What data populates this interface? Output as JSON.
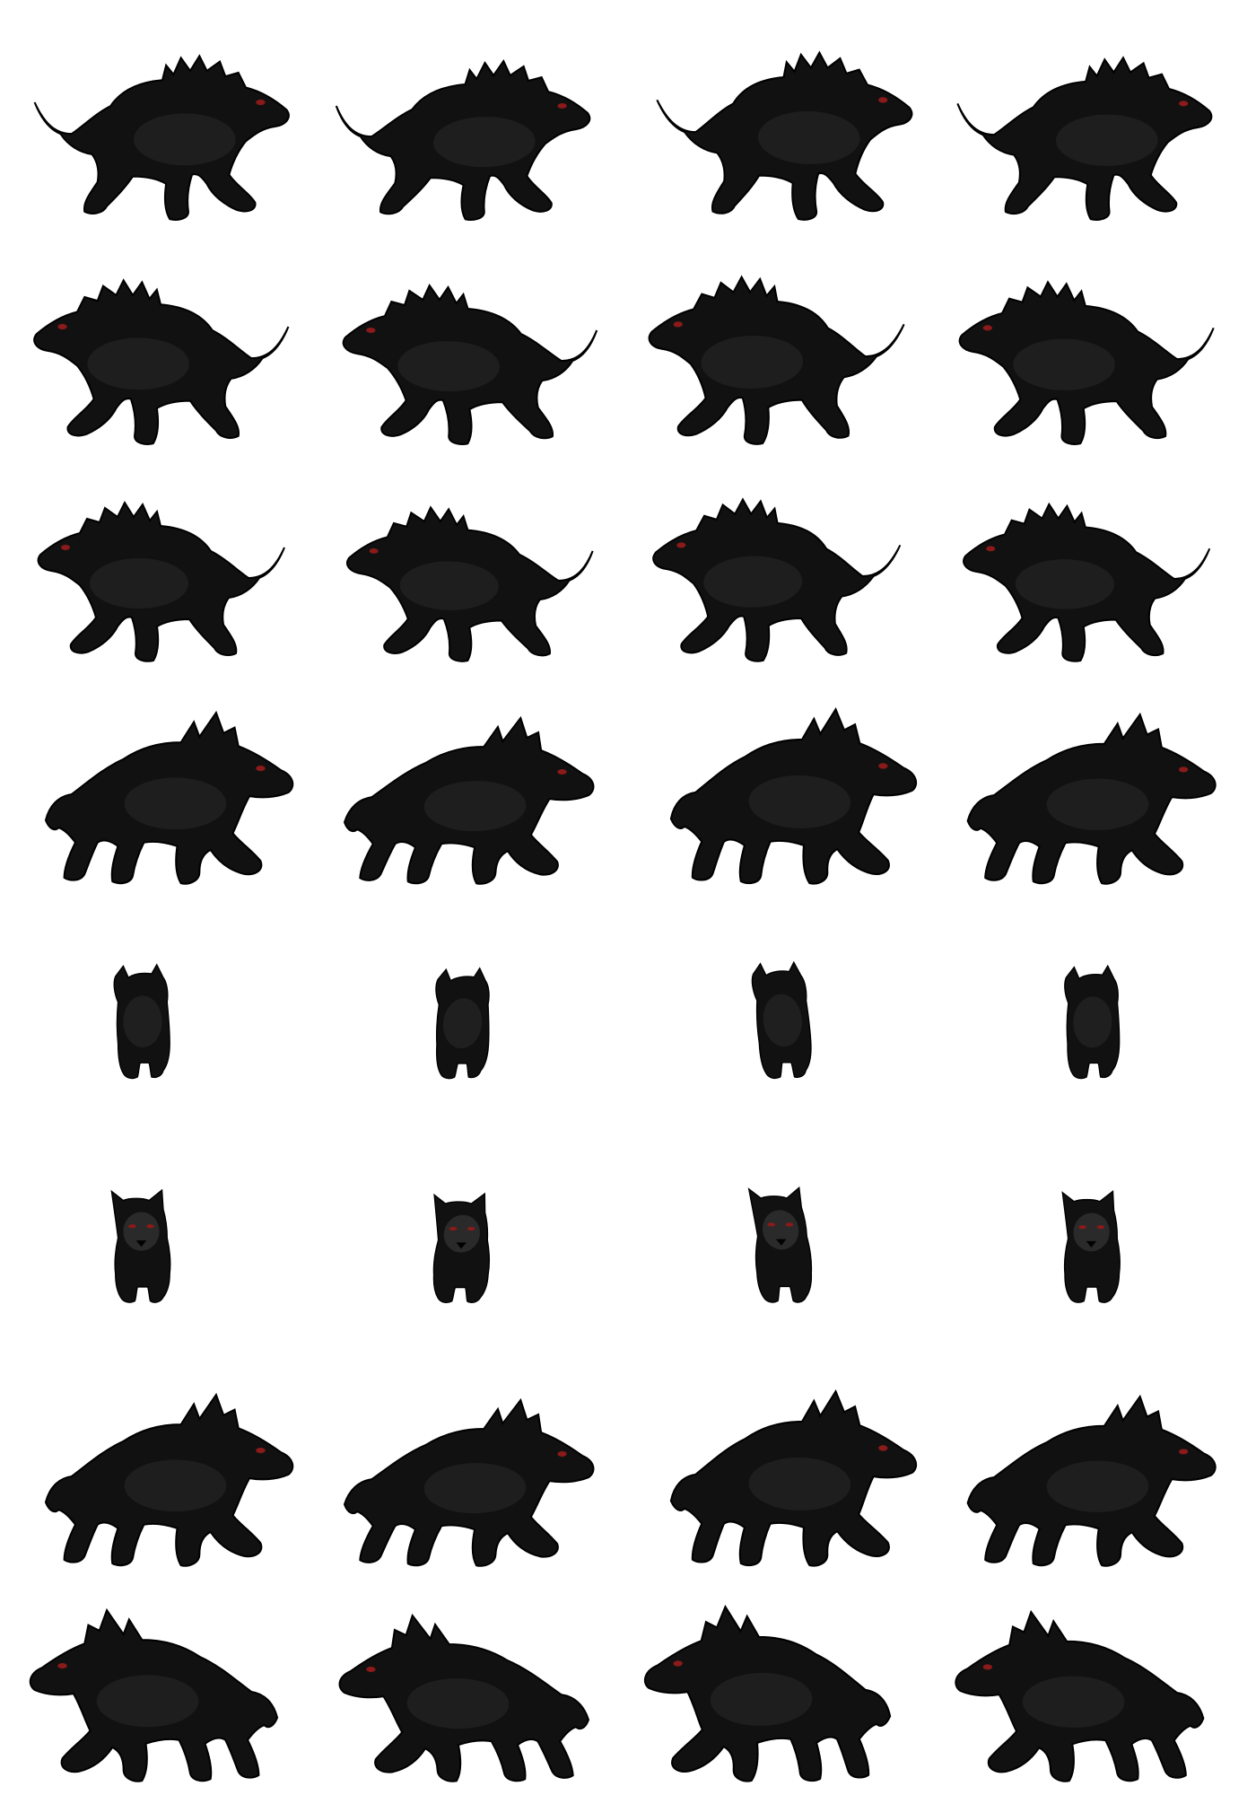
{
  "sheet": {
    "background": "#ffffff",
    "fill_color": "#111111",
    "shade_color": "#2a2a2a",
    "outline_color": "#000000",
    "eye_color": "#8b1a1a",
    "icon": "wolf-sprite-icon"
  },
  "rows": [
    {
      "name": "walk-right-a",
      "facing": "right",
      "view": "side",
      "frames": 4
    },
    {
      "name": "walk-left-a",
      "facing": "left",
      "view": "side",
      "frames": 4
    },
    {
      "name": "run-left",
      "facing": "left",
      "view": "side",
      "frames": 4
    },
    {
      "name": "walk-right-b",
      "facing": "right",
      "view": "three-quarter",
      "frames": 4
    },
    {
      "name": "walk-away",
      "facing": "back",
      "view": "back",
      "frames": 4
    },
    {
      "name": "walk-toward",
      "facing": "front",
      "view": "front",
      "frames": 4
    },
    {
      "name": "walk-right-c",
      "facing": "right",
      "view": "three-quarter",
      "frames": 4
    },
    {
      "name": "walk-left-b",
      "facing": "left",
      "view": "three-quarter",
      "frames": 4
    }
  ]
}
